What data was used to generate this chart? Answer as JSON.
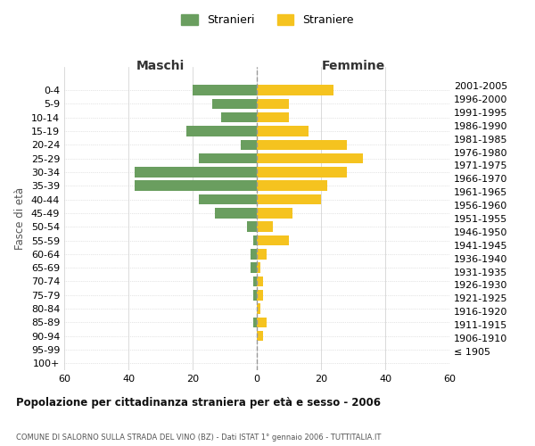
{
  "age_groups": [
    "100+",
    "95-99",
    "90-94",
    "85-89",
    "80-84",
    "75-79",
    "70-74",
    "65-69",
    "60-64",
    "55-59",
    "50-54",
    "45-49",
    "40-44",
    "35-39",
    "30-34",
    "25-29",
    "20-24",
    "15-19",
    "10-14",
    "5-9",
    "0-4"
  ],
  "birth_years": [
    "≤ 1905",
    "1906-1910",
    "1911-1915",
    "1916-1920",
    "1921-1925",
    "1926-1930",
    "1931-1935",
    "1936-1940",
    "1941-1945",
    "1946-1950",
    "1951-1955",
    "1956-1960",
    "1961-1965",
    "1966-1970",
    "1971-1975",
    "1976-1980",
    "1981-1985",
    "1986-1990",
    "1991-1995",
    "1996-2000",
    "2001-2005"
  ],
  "maschi": [
    0,
    0,
    0,
    1,
    0,
    1,
    1,
    2,
    2,
    1,
    3,
    13,
    18,
    38,
    38,
    18,
    5,
    22,
    11,
    14,
    20
  ],
  "femmine": [
    0,
    0,
    2,
    3,
    1,
    2,
    2,
    1,
    3,
    10,
    5,
    11,
    20,
    22,
    28,
    33,
    28,
    16,
    10,
    10,
    24
  ],
  "male_color": "#6a9e5f",
  "female_color": "#f5c31f",
  "legend_male": "Stranieri",
  "legend_female": "Straniere",
  "xlabel_left": "Maschi",
  "xlabel_right": "Femmine",
  "ylabel_left": "Fasce di età",
  "title": "Popolazione per cittadinanza straniera per età e sesso - 2006",
  "subtitle": "COMUNE DI SALORNO SULLA STRADA DEL VINO (BZ) - Dati ISTAT 1° gennaio 2006 - TUTTITALIA.IT",
  "xlim": 60,
  "grid_color": "#cccccc",
  "bg_color": "#ffffff"
}
